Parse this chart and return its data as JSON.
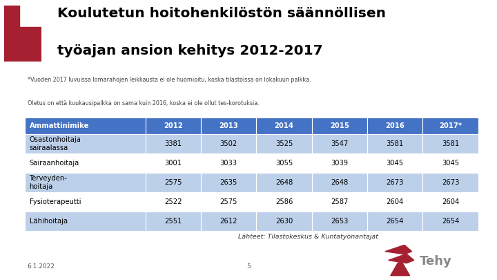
{
  "title_line1": "Koulutetun hoitohenkilöstön säännöllisen",
  "title_line2": "työajan ansion kehitys 2012-2017",
  "subtitle_line1": "*Vuoden 2017 luvuissa lomarahojen leikkausta ei ole huomioitu, koska tilastoissa on lokakuun palkka.",
  "subtitle_line2": "Oletus on että kuukausipalkka on sama kuin 2016, koska ei ole ollut tes-korotuksia.",
  "header": [
    "Ammattinimike",
    "2012",
    "2013",
    "2014",
    "2015",
    "2016",
    "2017*"
  ],
  "rows": [
    [
      "Osastonhoitaja\nsairaalassa",
      "3381",
      "3502",
      "3525",
      "3547",
      "3581",
      "3581"
    ],
    [
      "Sairaanhoitaja",
      "3001",
      "3033",
      "3055",
      "3039",
      "3045",
      "3045"
    ],
    [
      "Terveyden-\nhoitaja",
      "2575",
      "2635",
      "2648",
      "2648",
      "2673",
      "2673"
    ],
    [
      "Fysioterapeutti",
      "2522",
      "2575",
      "2586",
      "2587",
      "2604",
      "2604"
    ],
    [
      "Lähihoitaja",
      "2551",
      "2612",
      "2630",
      "2653",
      "2654",
      "2654"
    ]
  ],
  "footer_left": "6.1.2022",
  "footer_center": "5",
  "source_text": "Lähteet: Tilastokeskus & Kuntatyönantajat",
  "header_bg_color": "#4472C4",
  "row_odd_color": "#FFFFFF",
  "row_even_color": "#BDD0E9",
  "header_text_color": "#FFFFFF",
  "row_text_color": "#000000",
  "title_color": "#000000",
  "subtitle_color": "#404040",
  "background_color": "#FFFFFF",
  "tehy_red": "#A52030",
  "tehy_text_color": "#888888"
}
